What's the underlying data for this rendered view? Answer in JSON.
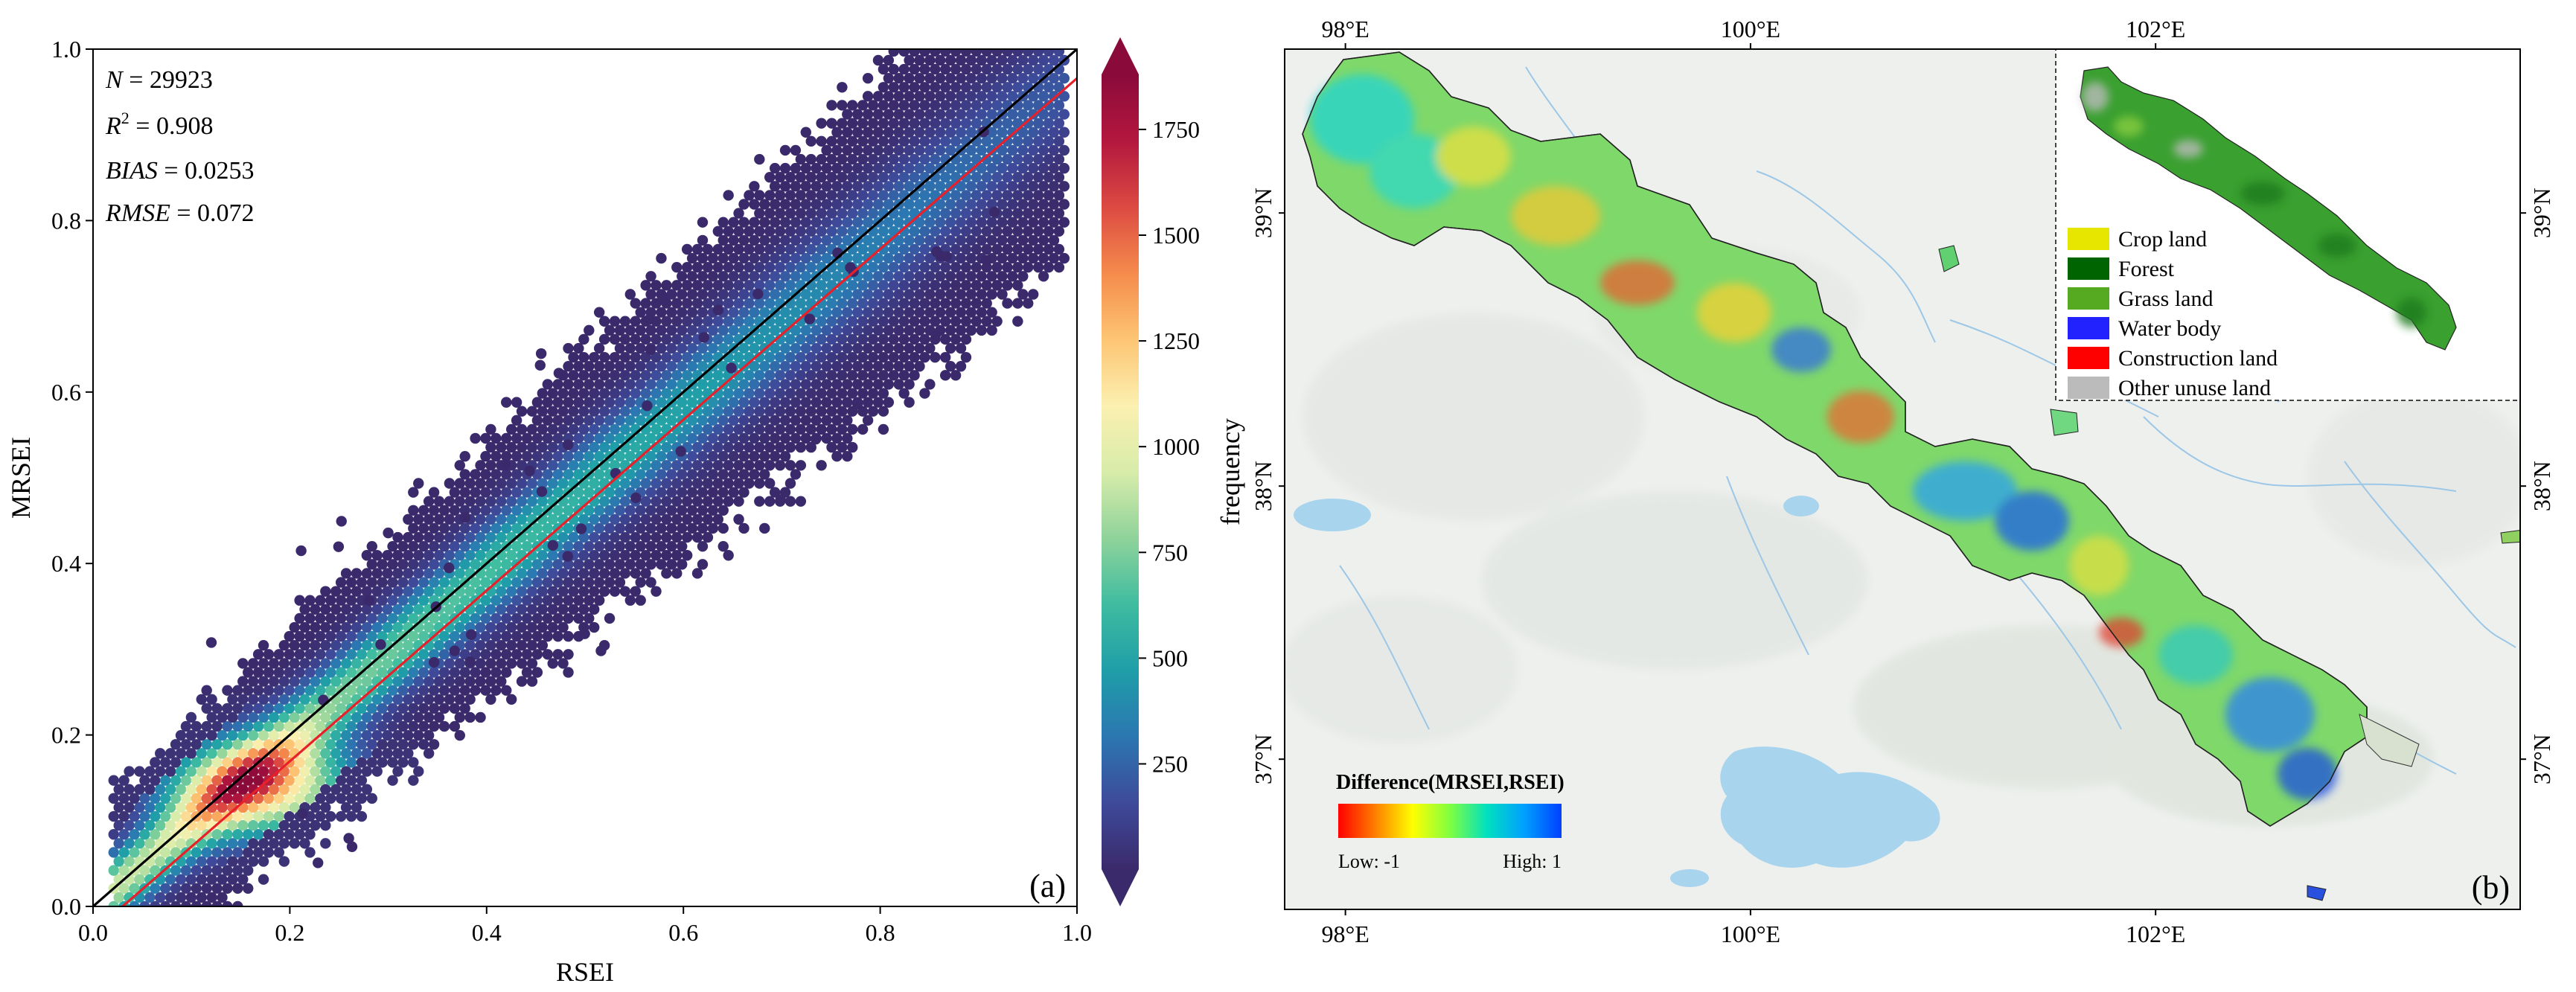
{
  "panel_a": {
    "panel_label": "(a)",
    "stats": [
      {
        "name": "N",
        "value": "29923"
      },
      {
        "name": "R",
        "sup": "2",
        "value": "0.908"
      },
      {
        "name": "BIAS",
        "value": "0.0253"
      },
      {
        "name": "RMSE",
        "value": "0.072"
      }
    ],
    "colorbar": {
      "label": "frequency",
      "ticks": [
        "250",
        "500",
        "750",
        "1000",
        "1250",
        "1500",
        "1750"
      ],
      "tick_values": [
        250,
        500,
        750,
        1000,
        1250,
        1500,
        1750
      ],
      "min": 1,
      "max": 1880,
      "colormap": [
        "#3b2a6b",
        "#3e4a9a",
        "#2b77b1",
        "#1f9ea8",
        "#3fbca0",
        "#8fd39a",
        "#d8ecaa",
        "#fbf0b0",
        "#fdc574",
        "#f58b4c",
        "#dc4a42",
        "#b3173e",
        "#8a0a3a"
      ]
    },
    "colors": {
      "identity_line": "#000000",
      "fit_line": "#e8202a"
    }
  },
  "chart_data": {
    "type": "scatter",
    "subtype": "hexbin-density",
    "xlabel": "RSEI",
    "ylabel": "MRSEI",
    "xlim": [
      0.0,
      1.0
    ],
    "ylim": [
      0.0,
      1.0
    ],
    "x_ticks": [
      "0.0",
      "0.2",
      "0.4",
      "0.6",
      "0.8",
      "1.0"
    ],
    "y_ticks": [
      "0.0",
      "0.2",
      "0.4",
      "0.6",
      "0.8",
      "1.0"
    ],
    "x_tick_values": [
      0.0,
      0.2,
      0.4,
      0.6,
      0.8,
      1.0
    ],
    "y_tick_values": [
      0.0,
      0.2,
      0.4,
      0.6,
      0.8,
      1.0
    ],
    "grid": false,
    "n_points": 29923,
    "density_peak": {
      "x": 0.17,
      "y": 0.14,
      "frequency": 1880
    },
    "reference_lines": [
      {
        "label": "1:1",
        "x": [
          0.0,
          1.0
        ],
        "y": [
          0.0,
          1.0
        ],
        "color": "#000000"
      },
      {
        "label": "fit",
        "x": [
          0.03,
          1.0
        ],
        "y": [
          0.0,
          0.966
        ],
        "color": "#e8202a"
      }
    ]
  },
  "panel_b": {
    "panel_label": "(b)",
    "top_ticks": [
      "98°E",
      "100°E",
      "102°E"
    ],
    "bottom_ticks": [
      "98°E",
      "100°E",
      "102°E"
    ],
    "left_ticks": [
      "39°N",
      "38°N",
      "37°N"
    ],
    "right_ticks": [
      "39°N",
      "38°N",
      "37°N"
    ],
    "lon_range": [
      97.7,
      103.8
    ],
    "lat_range": [
      36.45,
      39.6
    ],
    "legend_title": "Difference(MRSEI,RSEI)",
    "legend_low": "Low: -1",
    "legend_high": "High: 1",
    "difference_colormap": [
      "#ff0000",
      "#ff8000",
      "#ffff00",
      "#80ff40",
      "#00e0c0",
      "#00a0ff",
      "#0040ff"
    ],
    "landuse_legend": [
      {
        "label": "Crop land",
        "color": "#e6e600"
      },
      {
        "label": "Forest",
        "color": "#006400"
      },
      {
        "label": "Grass land",
        "color": "#55aa22"
      },
      {
        "label": "Water body",
        "color": "#2222ff"
      },
      {
        "label": "Construction land",
        "color": "#ff0000"
      },
      {
        "label": "Other unuse land",
        "color": "#bbbbbb"
      }
    ],
    "colors": {
      "basemap": "#eef0ee",
      "lake": "#a8d4ee",
      "river": "#9cc7e6"
    }
  }
}
